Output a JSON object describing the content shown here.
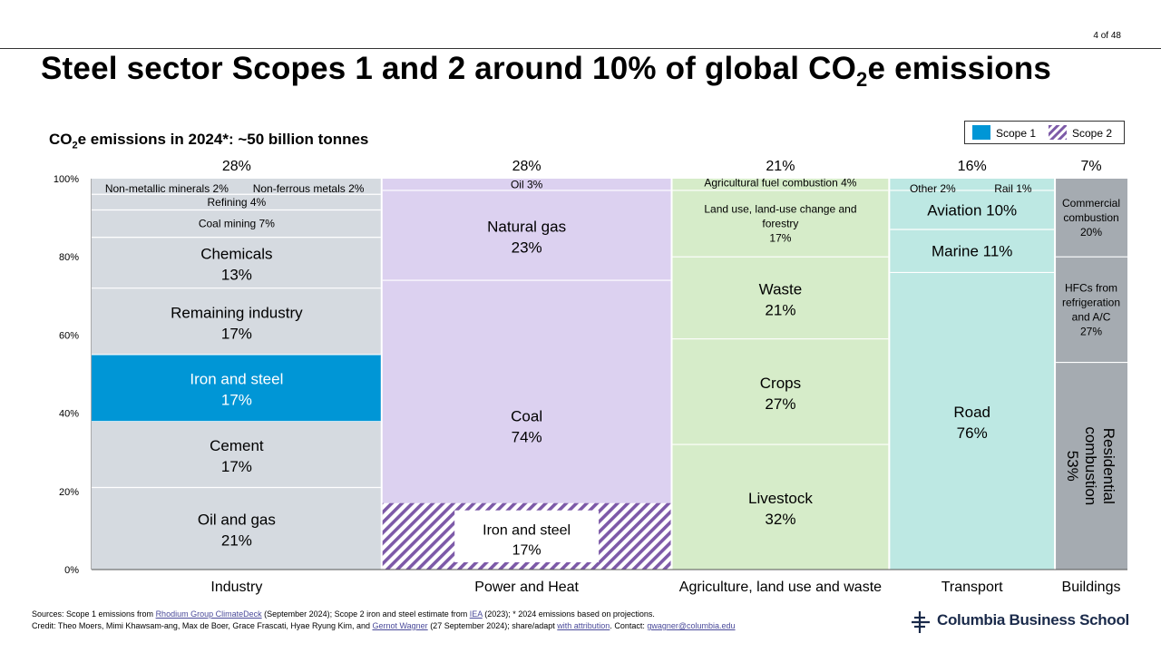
{
  "page_number": "4 of 48",
  "title": {
    "pre": "Steel sector Scopes 1 and 2 around 10% of global CO",
    "sub": "2",
    "post": "e emissions"
  },
  "subtitle": {
    "pre": "CO",
    "sub": "2",
    "post": "e emissions in 2024*: ~50 billion tonnes"
  },
  "legend": {
    "scope1": "Scope 1",
    "scope2": "Scope 2"
  },
  "colors": {
    "industry": "#d5dae0",
    "power": "#dcd1f0",
    "agriculture": "#d6ecc9",
    "transport": "#bde8e3",
    "buildings": "#a5abb1",
    "scope1_highlight": "#0096d6",
    "scope2_hatch": "#7d5aa8",
    "separator": "#ffffff"
  },
  "chart_data": {
    "type": "marimekko",
    "title": "",
    "ylabel": "",
    "ylim": [
      0,
      100
    ],
    "yticks": [
      "0%",
      "20%",
      "40%",
      "60%",
      "80%",
      "100%"
    ],
    "columns": [
      {
        "name": "Industry",
        "share": 28,
        "share_label": "28%",
        "color_key": "industry",
        "segments": [
          {
            "name": "Oil and gas",
            "value": 21,
            "lines": [
              "Oil and gas",
              "21%"
            ],
            "style": "big"
          },
          {
            "name": "Cement",
            "value": 17,
            "lines": [
              "Cement",
              "17%"
            ],
            "style": "big"
          },
          {
            "name": "Iron and steel",
            "value": 17,
            "lines": [
              "Iron and steel",
              "17%"
            ],
            "style": "big",
            "scope1": true
          },
          {
            "name": "Remaining industry",
            "value": 17,
            "lines": [
              "Remaining industry",
              "17%"
            ],
            "style": "big"
          },
          {
            "name": "Chemicals",
            "value": 13,
            "lines": [
              "Chemicals",
              "13%"
            ],
            "style": "big"
          },
          {
            "name": "Coal mining",
            "value": 7,
            "lines": [
              "Coal mining 7%"
            ],
            "style": "small"
          },
          {
            "name": "Refining",
            "value": 4,
            "lines": [
              "Refining 4%"
            ],
            "style": "small"
          },
          {
            "name": "Non-metallic minerals / Non-ferrous metals",
            "value": 4,
            "lines": [],
            "style": "small",
            "split_labels": [
              "Non-metallic minerals 2%",
              "Non-ferrous metals 2%"
            ]
          }
        ]
      },
      {
        "name": "Power and Heat",
        "share": 28,
        "share_label": "28%",
        "color_key": "power",
        "scope2": {
          "value": 17,
          "lines": [
            "Iron and steel",
            "17%"
          ]
        },
        "segments": [
          {
            "name": "Coal",
            "value": 74,
            "lines": [
              "Coal",
              "74%"
            ],
            "style": "big"
          },
          {
            "name": "Natural gas",
            "value": 23,
            "lines": [
              "Natural gas",
              "23%"
            ],
            "style": "big"
          },
          {
            "name": "Oil",
            "value": 3,
            "lines": [
              "Oil 3%"
            ],
            "style": "small"
          }
        ]
      },
      {
        "name": "Agriculture, land use and waste",
        "share": 21,
        "share_label": "21%",
        "color_key": "agriculture",
        "segments": [
          {
            "name": "Livestock",
            "value": 32,
            "lines": [
              "Livestock",
              "32%"
            ],
            "style": "big"
          },
          {
            "name": "Crops",
            "value": 27,
            "lines": [
              "Crops",
              "27%"
            ],
            "style": "big"
          },
          {
            "name": "Waste",
            "value": 21,
            "lines": [
              "Waste",
              "21%"
            ],
            "style": "big"
          },
          {
            "name": "Land use, land-use change and forestry",
            "value": 17,
            "lines": [
              "Land use, land-use change and",
              "forestry",
              "17%"
            ],
            "style": "small"
          },
          {
            "name": "Agricultural fuel combustion",
            "value": 4,
            "lines": [
              "Agricultural fuel combustion 4%"
            ],
            "style": "small"
          }
        ]
      },
      {
        "name": "Transport",
        "share": 16,
        "share_label": "16%",
        "color_key": "transport",
        "segments": [
          {
            "name": "Road",
            "value": 76,
            "lines": [
              "Road",
              "76%"
            ],
            "style": "big"
          },
          {
            "name": "Marine",
            "value": 11,
            "lines": [
              "Marine 11%"
            ],
            "style": "big"
          },
          {
            "name": "Aviation",
            "value": 10,
            "lines": [
              "Aviation 10%"
            ],
            "style": "big"
          },
          {
            "name": "Other / Rail",
            "value": 3,
            "lines": [],
            "style": "small",
            "split_labels": [
              "Other 2%",
              "Rail 1%"
            ]
          }
        ]
      },
      {
        "name": "Buildings",
        "share": 7,
        "share_label": "7%",
        "color_key": "buildings",
        "segments": [
          {
            "name": "Residential combustion",
            "value": 53,
            "lines": [
              "Residential",
              "combustion",
              "53%"
            ],
            "style": "rotated"
          },
          {
            "name": "HFCs from refrigeration and A/C",
            "value": 27,
            "lines": [
              "HFCs from",
              "refrigeration",
              "and A/C",
              "27%"
            ],
            "style": "small"
          },
          {
            "name": "Commercial combustion",
            "value": 20,
            "lines": [
              "Commercial",
              "combustion",
              "20%"
            ],
            "style": "small"
          }
        ]
      }
    ]
  },
  "sources": {
    "l1_a": "Sources: Scope 1 emissions from ",
    "l1_link1": "Rhodium Group ClimateDeck",
    "l1_b": " (September 2024); Scope 2 iron and steel estimate from ",
    "l1_link2": "IEA",
    "l1_c": " (2023); * 2024 emissions based on projections.",
    "l2_a": "Credit: Theo Moers, Mimi Khawsam-ang, Max de Boer, Grace Frascati, Hyae Ryung Kim, and ",
    "l2_link1": "Gernot Wagner",
    "l2_b": " (27 September 2024); share/adapt ",
    "l2_link2": "with attribution",
    "l2_c": ". Contact: ",
    "l2_link3": "gwagner@columbia.edu"
  },
  "logo": {
    "name": "Columbia Business School",
    "icon": "columbia-crown-icon"
  }
}
